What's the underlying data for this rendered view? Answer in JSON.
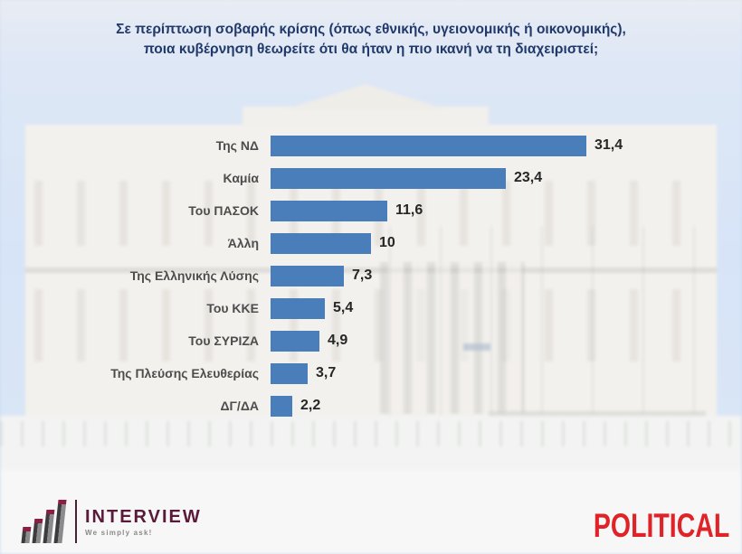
{
  "title": "Σε περίπτωση σοβαρής κρίσης (όπως εθνικής, υγειονομικής ή οικονομικής),\nποια κυβέρνηση θεωρείτε ότι θα ήταν η πιο ικανή να τη διαχειριστεί;",
  "chart_data": {
    "type": "bar",
    "orientation": "horizontal",
    "title": "Σε περίπτωση σοβαρής κρίσης (όπως εθνικής, υγειονομικής ή οικονομικής), ποια κυβέρνηση θεωρείτε ότι θα ήταν η πιο ικανή να τη διαχειριστεί;",
    "categories": [
      "Της ΝΔ",
      "Καμία",
      "Του ΠΑΣΟΚ",
      "Άλλη",
      "Της Ελληνικής Λύσης",
      "Του ΚΚΕ",
      "Του ΣΥΡΙΖΑ",
      "Της Πλεύσης Ελευθερίας",
      "ΔΓ/ΔΑ"
    ],
    "values": [
      31.4,
      23.4,
      11.6,
      10,
      7.3,
      5.4,
      4.9,
      3.7,
      2.2
    ],
    "value_labels": [
      "31,4",
      "23,4",
      "11,6",
      "10",
      "7,3",
      "5,4",
      "4,9",
      "3,7",
      "2,2"
    ],
    "xlim": [
      0,
      33
    ],
    "grid": false,
    "legend": false,
    "bar_color": "#4a7ebb",
    "value_label_position": "end-of-bar"
  },
  "colors": {
    "title_text": "#20396b",
    "bar": "#4a7ebb",
    "category_text": "#4d4d4d",
    "value_text": "#262626",
    "political_red": "#e02328",
    "interview_maroon": "#5b1a3a",
    "sky_blue": "#c6d9f3"
  },
  "footer": {
    "interview": {
      "name": "INTERVIEW",
      "tagline": "We simply ask!"
    },
    "political": {
      "name": "POLITICAL"
    }
  },
  "background_description": "Faded photo of the Hellenic Parliament building in Athens"
}
